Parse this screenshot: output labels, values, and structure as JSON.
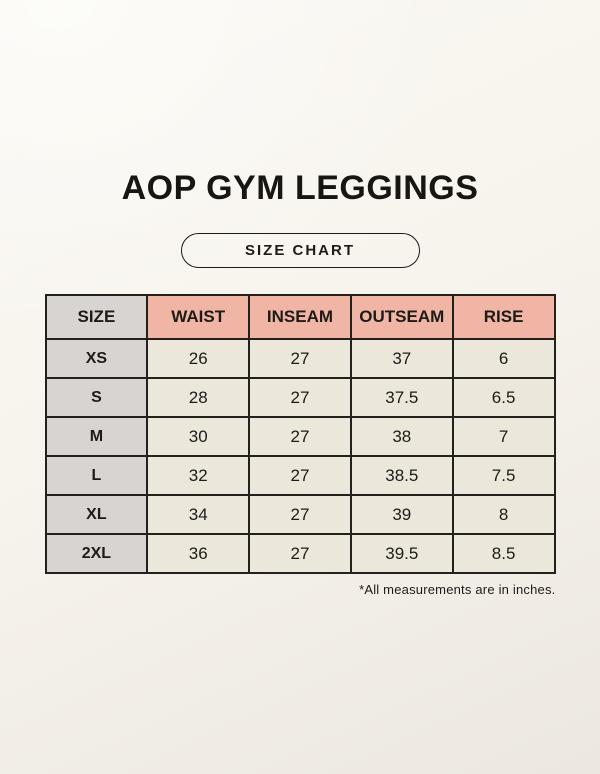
{
  "page": {
    "title": "AOP GYM LEGGINGS",
    "badge_label": "SIZE CHART",
    "footnote": "*All measurements are in inches."
  },
  "chart_data": {
    "type": "table",
    "columns": [
      "SIZE",
      "WAIST",
      "INSEAM",
      "OUTSEAM",
      "RISE"
    ],
    "rows": [
      [
        "XS",
        "26",
        "27",
        "37",
        "6"
      ],
      [
        "S",
        "28",
        "27",
        "37.5",
        "6.5"
      ],
      [
        "M",
        "30",
        "27",
        "38",
        "7"
      ],
      [
        "L",
        "32",
        "27",
        "38.5",
        "7.5"
      ],
      [
        "XL",
        "34",
        "27",
        "39",
        "8"
      ],
      [
        "2XL",
        "36",
        "27",
        "39.5",
        "8.5"
      ]
    ],
    "units": "inches",
    "layout": "header row shaded salmon except SIZE header; SIZE column shaded gray; data cells cream"
  },
  "colors": {
    "background": "#f7f4ed",
    "header_accent": "#f0b5a4",
    "size_column": "#d8d4d1",
    "cell": "#ece7db",
    "border": "#24211d",
    "text": "#1d1b18"
  }
}
